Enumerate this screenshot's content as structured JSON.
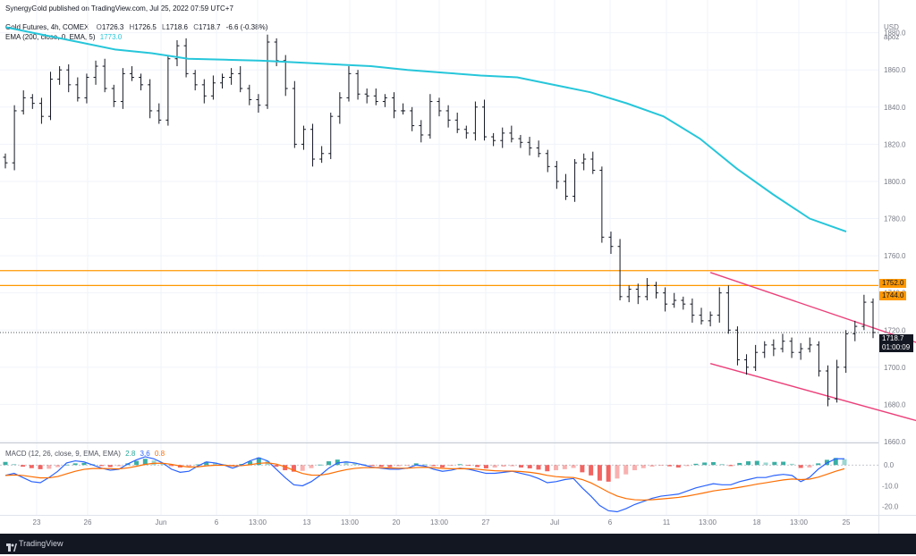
{
  "header": {
    "published": "SynergyGold published on TradingView.com, Jul 25, 2022 07:59 UTC+7",
    "symbol": "Gold Futures, 4h, COMEX",
    "o_label": "O",
    "o_value": "1726.3",
    "h_label": "H",
    "h_value": "1726.5",
    "l_label": "L",
    "l_value": "1718.6",
    "c_label": "C",
    "c_value": "1718.7",
    "change": "-6.6 (-0.38%)",
    "ema_label": "EMA (200, close, 0, EMA, 5)",
    "ema_value": "1773.0"
  },
  "axis_top": {
    "currency": "USD",
    "unit": "apoz"
  },
  "price_labels": {
    "current": "1718.7",
    "countdown": "01:00:09",
    "level_1": "1752.0",
    "level_2": "1744.0"
  },
  "macd": {
    "label": "MACD (12, 26, close, 9, EMA, EMA)",
    "v1": "2.8",
    "v2": "3.6",
    "v3": "0.8",
    "colors": {
      "hist_pos": "#26a69a",
      "hist_neg": "#ef5350",
      "macd": "#2962ff",
      "signal": "#ff6d00"
    }
  },
  "footer": {
    "brand": "TradingView"
  },
  "colors": {
    "ema": "#26c6da",
    "level": "#ff9800",
    "channel": "#ec407a",
    "candle": "#131722"
  },
  "chart_data": {
    "type": "line",
    "title": "Gold Futures, 4h, COMEX",
    "x_ticks": [
      "23",
      "26",
      "Jun",
      "6",
      "13:00",
      "13",
      "13:00",
      "20",
      "13:00",
      "27",
      "Jul",
      "6",
      "11",
      "13:00",
      "18",
      "13:00",
      "25"
    ],
    "y_ticks": [
      1880.0,
      1860.0,
      1840.0,
      1820.0,
      1800.0,
      1780.0,
      1760.0,
      1740.0,
      1720.0,
      1700.0,
      1680.0,
      1660.0
    ],
    "ylim": [
      1660,
      1888
    ],
    "series": [
      {
        "name": "EMA (200, close, 0, EMA, 5)",
        "values": [
          1883,
          1879,
          1875,
          1871,
          1869,
          1866,
          1865.5,
          1865,
          1864,
          1863,
          1862,
          1860,
          1858.5,
          1857,
          1856,
          1852,
          1848,
          1842,
          1835,
          1823,
          1807,
          1793,
          1780,
          1773
        ]
      }
    ],
    "candles_close": [
      1810,
      1838,
      1845,
      1842,
      1835,
      1855,
      1860,
      1852,
      1845,
      1856,
      1862,
      1850,
      1843,
      1858,
      1856,
      1852,
      1838,
      1833,
      1866,
      1873,
      1858,
      1852,
      1846,
      1853,
      1856,
      1858,
      1850,
      1844,
      1841,
      1875,
      1865,
      1850,
      1820,
      1828,
      1812,
      1815,
      1835,
      1845,
      1858,
      1847,
      1846,
      1843,
      1845,
      1838,
      1838,
      1830,
      1825,
      1843,
      1838,
      1833,
      1828,
      1826,
      1840,
      1824,
      1822,
      1826,
      1823,
      1821,
      1818,
      1815,
      1808,
      1800,
      1792,
      1810,
      1812,
      1806,
      1770,
      1765,
      1738,
      1742,
      1738,
      1744,
      1740,
      1734,
      1736,
      1734,
      1728,
      1725,
      1728,
      1740,
      1720,
      1704,
      1700,
      1708,
      1712,
      1710,
      1714,
      1708,
      1710,
      1712,
      1698,
      1683,
      1700,
      1718,
      1722,
      1735,
      1718.7
    ],
    "horizontal_levels": [
      1752.0,
      1744.0
    ],
    "current_price": 1718.7,
    "macd_ylim": [
      -24,
      10
    ],
    "macd_y_ticks": [
      0.0,
      -10.0,
      -20.0
    ],
    "macd_histogram": [
      1.5,
      0.5,
      -0.8,
      -1.5,
      -2,
      -1.8,
      -1,
      0.2,
      0.8,
      1,
      0.5,
      -0.5,
      -1,
      -0.6,
      0.8,
      2,
      3,
      2.2,
      1,
      -0.5,
      -1.2,
      -0.8,
      0.3,
      1.5,
      1.2,
      0.4,
      -0.6,
      0.5,
      1.8,
      3.6,
      2,
      -0.8,
      -2.5,
      -3.2,
      -2.8,
      -1.5,
      0.2,
      1.8,
      2.6,
      1.8,
      1,
      0.4,
      -0.4,
      -0.8,
      -1,
      -0.6,
      -0.2,
      0.8,
      0.4,
      -0.5,
      -1.2,
      -0.4,
      0.4,
      -0.3,
      -1,
      -1.6,
      -1.2,
      -0.8,
      -0.6,
      -1.2,
      -1.6,
      -2.2,
      -3,
      -2.5,
      -2,
      -1.4,
      -3.5,
      -5,
      -7.5,
      -8,
      -6.5,
      -4.5,
      -2.5,
      -1.5,
      -0.8,
      -0.3,
      -0.6,
      -1.2,
      -0.5,
      0.6,
      1.2,
      1.4,
      0.5,
      -0.5,
      1,
      1.8,
      2,
      1.2,
      1.5,
      1.6,
      0.6,
      -1.4,
      -1.2,
      0.8,
      2.5,
      3.4,
      2.8
    ],
    "macd_line": [
      -5,
      -4,
      -6,
      -8,
      -8.5,
      -6,
      -3,
      1,
      2,
      1.5,
      0,
      -1.5,
      -2.5,
      -2,
      0.5,
      2.5,
      4,
      3,
      1,
      -2,
      -3.5,
      -3,
      -0.5,
      1.5,
      1,
      0,
      -1.5,
      0,
      2,
      3.5,
      2,
      -2,
      -6,
      -9.5,
      -10,
      -8,
      -5,
      -1.5,
      1,
      1.5,
      1,
      0,
      -1,
      -1.5,
      -2,
      -2,
      -1.5,
      0,
      -0.5,
      -2,
      -3,
      -2.5,
      -1.5,
      -2,
      -3,
      -4,
      -4,
      -3.5,
      -3,
      -4,
      -5,
      -6.5,
      -8.5,
      -8,
      -7,
      -6.5,
      -11,
      -15,
      -19.5,
      -22,
      -22.5,
      -21,
      -19,
      -17.5,
      -16,
      -15,
      -14.5,
      -14,
      -12.5,
      -11,
      -10,
      -9,
      -9.5,
      -9.5,
      -8,
      -7,
      -6,
      -6,
      -5,
      -4.5,
      -5,
      -8,
      -6,
      -2,
      1,
      3,
      3
    ]
  }
}
